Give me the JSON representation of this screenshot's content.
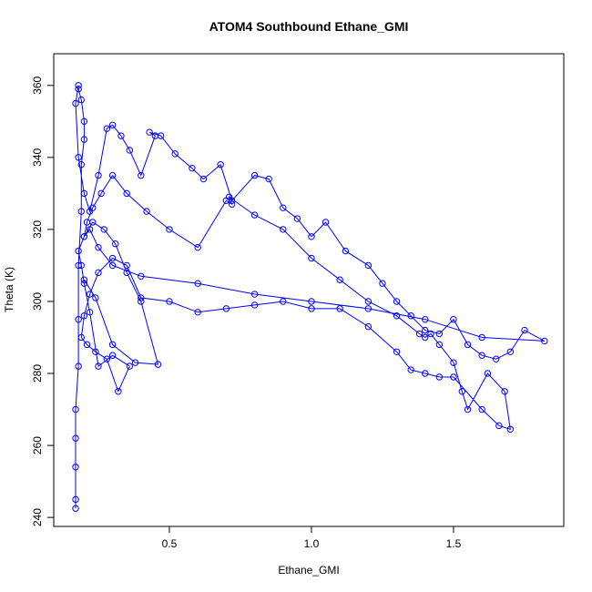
{
  "chart_data": {
    "type": "line",
    "title": "ATOM4 Southbound Ethane_GMI",
    "x_label": "Ethane_GMI",
    "y_label": "Theta (K)",
    "color": "#0000ff",
    "markers": true,
    "xlim": [
      0.093,
      1.888
    ],
    "ylim": [
      237.5,
      368.8
    ],
    "xticks": [
      {
        "value": 0.5,
        "label": "0.5"
      },
      {
        "value": 1.0,
        "label": "1.0"
      },
      {
        "value": 1.5,
        "label": "1.5"
      }
    ],
    "yticks": [
      240,
      260,
      280,
      300,
      320,
      340,
      360
    ],
    "x": [
      0.17,
      0.17,
      0.17,
      0.17,
      0.17,
      0.18,
      0.18,
      0.18,
      0.19,
      0.19,
      0.2,
      0.2,
      0.19,
      0.18,
      0.18,
      0.17,
      0.18,
      0.2,
      0.22,
      0.25,
      0.28,
      0.3,
      0.33,
      0.36,
      0.4,
      0.45,
      0.43,
      0.47,
      0.52,
      0.58,
      0.62,
      0.68,
      0.72,
      0.8,
      0.85,
      0.9,
      0.95,
      1.0,
      1.05,
      1.12,
      1.2,
      1.25,
      1.3,
      1.35,
      1.4,
      1.45,
      1.5,
      1.55,
      1.6,
      1.65,
      1.7,
      1.75,
      1.82,
      1.6,
      1.4,
      1.2,
      1.0,
      0.8,
      0.6,
      0.4,
      0.3,
      0.25,
      0.22,
      0.2,
      0.21,
      0.23,
      0.26,
      0.3,
      0.35,
      0.42,
      0.5,
      0.6,
      0.7,
      0.72,
      0.71,
      0.8,
      0.9,
      1.0,
      1.1,
      1.2,
      1.3,
      1.38,
      1.4,
      1.42,
      1.45,
      1.5,
      1.53,
      1.55,
      1.62,
      1.68,
      1.7,
      1.66,
      1.6,
      1.5,
      1.45,
      1.4,
      1.35,
      1.3,
      1.2,
      1.1,
      1.0,
      0.9,
      0.8,
      0.7,
      0.6,
      0.5,
      0.4,
      0.35,
      0.3,
      0.25,
      0.22,
      0.2,
      0.19,
      0.21,
      0.24,
      0.28,
      0.32,
      0.36,
      0.3,
      0.25,
      0.22,
      0.2,
      0.19,
      0.18,
      0.2,
      0.23,
      0.27,
      0.31,
      0.35,
      0.4,
      0.46,
      0.38,
      0.3,
      0.24,
      0.2
    ],
    "values": [
      242.5,
      245,
      254,
      262,
      270,
      282,
      295,
      310,
      325,
      338,
      345,
      350,
      356,
      359,
      360,
      355,
      340,
      330,
      325,
      335,
      348,
      349,
      346,
      342,
      335,
      346,
      347,
      346,
      341,
      337,
      334,
      338,
      328,
      335,
      334,
      326,
      323,
      318,
      322,
      314,
      310,
      305,
      300,
      296,
      292,
      291,
      295,
      288,
      285,
      284,
      286,
      292,
      289,
      290,
      295,
      298,
      300,
      302,
      305,
      307,
      310,
      315,
      320,
      318,
      322,
      326,
      330,
      335,
      330,
      325,
      320,
      315,
      328,
      327,
      329,
      324,
      320,
      312,
      306,
      300,
      296,
      291,
      290,
      291,
      288,
      283,
      275,
      270,
      280,
      275,
      264.5,
      265.5,
      270,
      279,
      279,
      280,
      281,
      286,
      293,
      298,
      298,
      300,
      299,
      298,
      297,
      300,
      301,
      310,
      312,
      308,
      302,
      296,
      290,
      288,
      286,
      284,
      275,
      282,
      285,
      282,
      297,
      305,
      310,
      314,
      318,
      322,
      320,
      316,
      308,
      300,
      282.5,
      283,
      288,
      301,
      306
    ]
  }
}
